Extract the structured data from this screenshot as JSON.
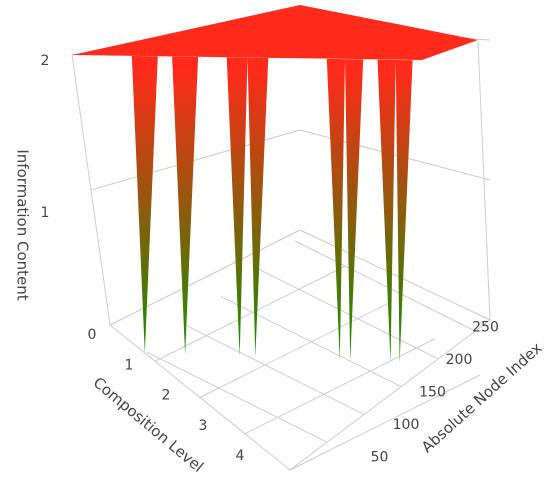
{
  "chart_data": {
    "type": "surface3d",
    "zaxis_title": "Information Content",
    "xaxis_title": "Composition Level",
    "yaxis_title": "Absolute Node Index",
    "xticks": [
      0,
      1,
      2,
      3,
      4
    ],
    "yticks": [
      50,
      100,
      150,
      200,
      250
    ],
    "zlim": [
      0,
      2
    ],
    "zticks": [
      1,
      2
    ],
    "colorscale": [
      "#ff2a1a",
      "#1e8c00"
    ],
    "node_index": [
      0,
      46,
      56,
      66,
      77,
      87,
      97,
      119,
      129,
      135,
      141,
      151,
      196,
      206,
      210,
      214,
      224,
      235,
      245,
      249,
      252,
      262,
      270
    ],
    "values": [
      2,
      2,
      0,
      2,
      2,
      0,
      2,
      2,
      0,
      2,
      0,
      2,
      2,
      0,
      2,
      0,
      2,
      2,
      0,
      2,
      0,
      2,
      2
    ]
  }
}
